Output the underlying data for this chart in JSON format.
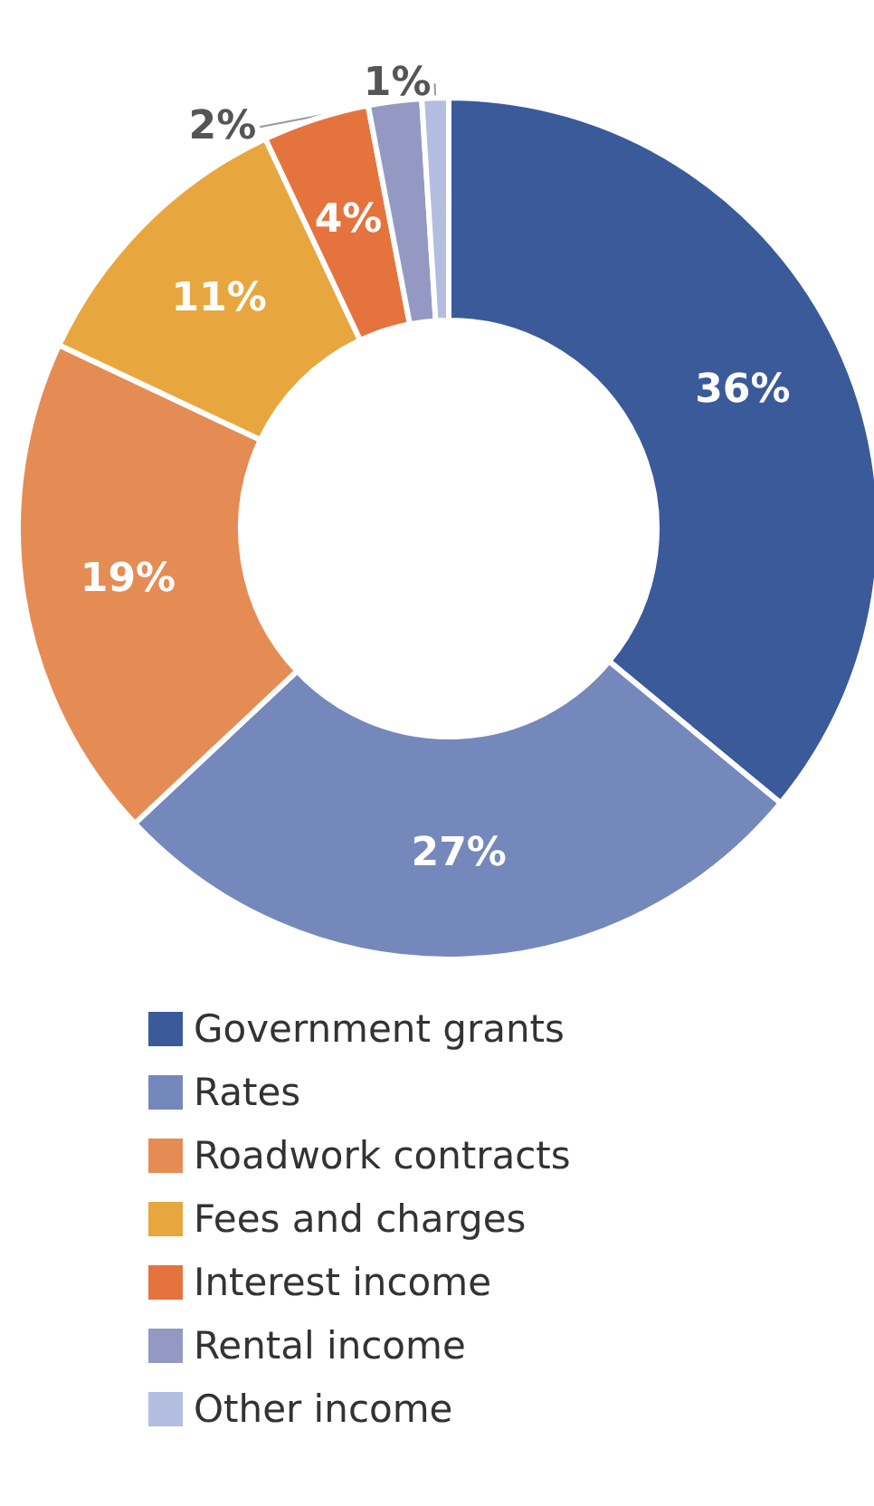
{
  "chart_data": {
    "type": "donut",
    "categories": [
      "Government grants",
      "Rates",
      "Roadwork contracts",
      "Fees and charges",
      "Interest income",
      "Rental income",
      "Other income"
    ],
    "values": [
      36,
      27,
      19,
      11,
      4,
      2,
      1
    ],
    "colors": [
      "#3a5a9a",
      "#7588bb",
      "#e58c54",
      "#e8a73e",
      "#e5733e",
      "#9499c4",
      "#b3bde0"
    ],
    "value_labels": [
      "36%",
      "27%",
      "19%",
      "11%",
      "4%",
      "2%",
      "1%"
    ],
    "legend": "bottom"
  }
}
